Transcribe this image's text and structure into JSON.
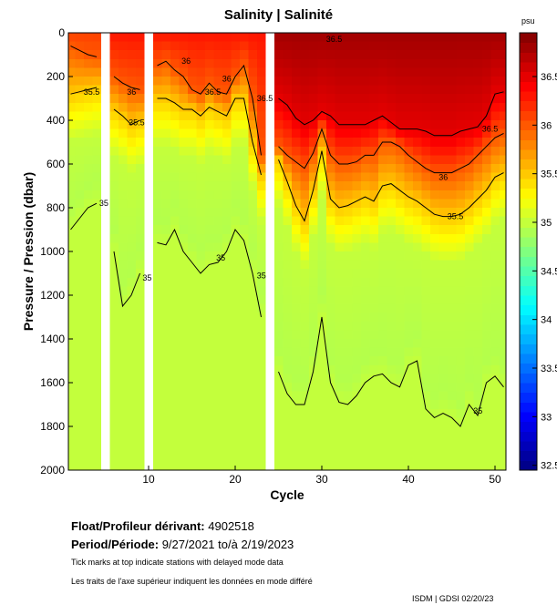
{
  "chart_data": {
    "type": "heatmap",
    "title": "Salinity | Salinité",
    "xlabel": "Cycle",
    "ylabel": "Pressure / Pression (dbar)",
    "xlim": [
      0.5,
      51.5
    ],
    "ylim": [
      2000,
      0
    ],
    "xticks": [
      10,
      20,
      30,
      40,
      50
    ],
    "yticks": [
      0,
      200,
      400,
      600,
      800,
      1000,
      1200,
      1400,
      1600,
      1800,
      2000
    ],
    "colorbar": {
      "label": "psu",
      "range": [
        32.45,
        36.95
      ],
      "ticks": [
        32.5,
        33,
        33.5,
        34,
        34.5,
        35,
        35.5,
        36,
        36.5
      ]
    },
    "missing_cycles": [
      5,
      10,
      24
    ],
    "contour_levels": [
      35,
      35.5,
      36,
      36.5
    ],
    "profiles": {
      "cycles": [
        1,
        2,
        3,
        4,
        6,
        7,
        8,
        9,
        11,
        12,
        13,
        14,
        15,
        16,
        17,
        18,
        19,
        20,
        21,
        22,
        23,
        25,
        26,
        27,
        28,
        29,
        30,
        31,
        32,
        33,
        34,
        35,
        36,
        37,
        38,
        39,
        40,
        41,
        42,
        43,
        44,
        45,
        46,
        47,
        48,
        49,
        50,
        51
      ],
      "surface_salinity": [
        36.1,
        36.1,
        36.1,
        36.1,
        36.3,
        36.3,
        36.3,
        36.3,
        36.3,
        36.3,
        36.3,
        36.3,
        36.3,
        36.3,
        36.3,
        36.3,
        36.3,
        36.3,
        36.3,
        36.3,
        36.3,
        36.8,
        36.8,
        36.8,
        36.8,
        36.8,
        36.8,
        36.8,
        36.8,
        36.8,
        36.8,
        36.8,
        36.8,
        36.8,
        36.8,
        36.8,
        36.8,
        36.8,
        36.8,
        36.8,
        36.8,
        36.8,
        36.8,
        36.8,
        36.8,
        36.8,
        36.8,
        36.8
      ],
      "depth_36_5": [
        null,
        null,
        null,
        null,
        null,
        null,
        null,
        null,
        null,
        null,
        null,
        null,
        null,
        null,
        null,
        null,
        null,
        null,
        null,
        null,
        null,
        300,
        330,
        390,
        420,
        400,
        360,
        380,
        420,
        420,
        420,
        420,
        400,
        380,
        410,
        440,
        440,
        440,
        450,
        470,
        470,
        470,
        450,
        440,
        430,
        380,
        280,
        270
      ],
      "depth_36": [
        60,
        80,
        100,
        110,
        200,
        230,
        250,
        260,
        150,
        130,
        170,
        200,
        260,
        280,
        230,
        270,
        280,
        200,
        150,
        300,
        560,
        520,
        560,
        590,
        620,
        550,
        440,
        560,
        600,
        600,
        590,
        560,
        560,
        500,
        500,
        520,
        560,
        590,
        620,
        640,
        640,
        640,
        620,
        600,
        560,
        520,
        480,
        460
      ],
      "depth_35_5": [
        280,
        270,
        260,
        250,
        350,
        380,
        420,
        400,
        300,
        300,
        320,
        350,
        350,
        380,
        340,
        360,
        380,
        300,
        300,
        500,
        650,
        580,
        680,
        790,
        860,
        720,
        540,
        760,
        800,
        790,
        770,
        750,
        770,
        700,
        690,
        720,
        750,
        770,
        800,
        830,
        840,
        840,
        830,
        800,
        760,
        720,
        660,
        640
      ],
      "depth_35": [
        900,
        850,
        800,
        780,
        1000,
        1250,
        1200,
        1100,
        960,
        970,
        900,
        1000,
        1050,
        1100,
        1060,
        1050,
        1000,
        900,
        950,
        1100,
        1300,
        1550,
        1650,
        1700,
        1700,
        1550,
        1300,
        1600,
        1690,
        1700,
        1660,
        1600,
        1570,
        1560,
        1600,
        1620,
        1520,
        1500,
        1720,
        1760,
        1740,
        1760,
        1800,
        1700,
        1750,
        1600,
        1570,
        1620
      ]
    },
    "contour_labels": [
      {
        "text": "35.5",
        "cycle": 2.5,
        "p": 270
      },
      {
        "text": "35",
        "cycle": 4.3,
        "p": 780
      },
      {
        "text": "36",
        "cycle": 7.5,
        "p": 270
      },
      {
        "text": "35.5",
        "cycle": 7.7,
        "p": 410
      },
      {
        "text": "35",
        "cycle": 9.3,
        "p": 1120
      },
      {
        "text": "36",
        "cycle": 13.8,
        "p": 130
      },
      {
        "text": "36.5",
        "cycle": 16.5,
        "p": 270
      },
      {
        "text": "36",
        "cycle": 18.5,
        "p": 210
      },
      {
        "text": "35",
        "cycle": 17.8,
        "p": 1030
      },
      {
        "text": "36.5",
        "cycle": 22.5,
        "p": 300
      },
      {
        "text": "35",
        "cycle": 22.5,
        "p": 1110
      },
      {
        "text": "36.5",
        "cycle": 30.5,
        "p": 30
      },
      {
        "text": "36.5",
        "cycle": 48.5,
        "p": 440
      },
      {
        "text": "36",
        "cycle": 43.5,
        "p": 660
      },
      {
        "text": "35.5",
        "cycle": 44.5,
        "p": 840
      },
      {
        "text": "35",
        "cycle": 47.5,
        "p": 1730
      }
    ]
  },
  "info": {
    "float_label": "Float/Profileur dérivant:",
    "float_id": "4902518",
    "period_label": "Period/Période:",
    "period_value": "9/27/2021  to/à  2/19/2023",
    "note_en": "Tick marks at top indicate stations with delayed mode data",
    "note_fr": "Les traits de l'axe supérieur indiquent les données en mode différé",
    "credit": "ISDM | GDSI  02/20/23"
  }
}
